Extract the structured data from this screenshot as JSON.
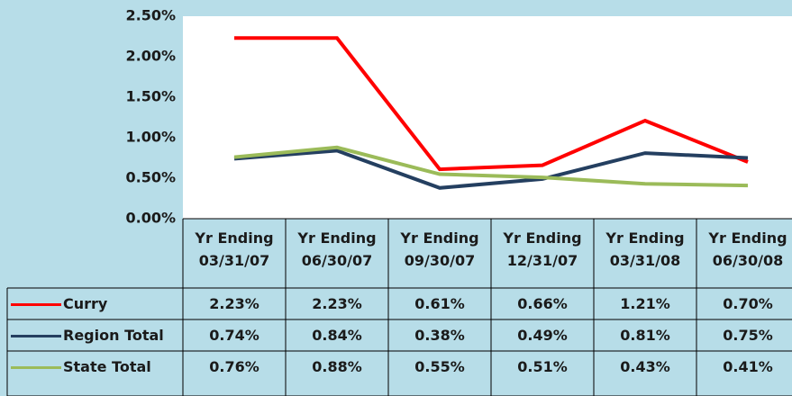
{
  "chart_data": {
    "type": "line",
    "categories": [
      "Yr Ending\n03/31/07",
      "Yr Ending\n06/30/07",
      "Yr Ending\n09/30/07",
      "Yr Ending\n12/31/07",
      "Yr Ending\n03/31/08",
      "Yr Ending\n06/30/08"
    ],
    "series": [
      {
        "name": "Curry",
        "color": "#ff0000",
        "values": [
          2.23,
          2.23,
          0.61,
          0.66,
          1.21,
          0.7
        ],
        "value_labels": [
          "2.23%",
          "2.23%",
          "0.61%",
          "0.66%",
          "1.21%",
          "0.70%"
        ]
      },
      {
        "name": "Region Total",
        "color": "#243f60",
        "values": [
          0.74,
          0.84,
          0.38,
          0.49,
          0.81,
          0.75
        ],
        "value_labels": [
          "0.74%",
          "0.84%",
          "0.38%",
          "0.49%",
          "0.81%",
          "0.75%"
        ]
      },
      {
        "name": "State Total",
        "color": "#9bbb59",
        "values": [
          0.76,
          0.88,
          0.55,
          0.51,
          0.43,
          0.41
        ],
        "value_labels": [
          "0.76%",
          "0.88%",
          "0.55%",
          "0.51%",
          "0.43%",
          "0.41%"
        ]
      }
    ],
    "ylim": [
      0,
      2.5
    ],
    "yticks": [
      {
        "value": 0,
        "label": "0.00%"
      },
      {
        "value": 0.5,
        "label": "0.50%"
      },
      {
        "value": 1,
        "label": "1.00%"
      },
      {
        "value": 1.5,
        "label": "1.50%"
      },
      {
        "value": 2,
        "label": "2.00%"
      },
      {
        "value": 2.5,
        "label": "2.50%"
      }
    ],
    "grid": false
  }
}
